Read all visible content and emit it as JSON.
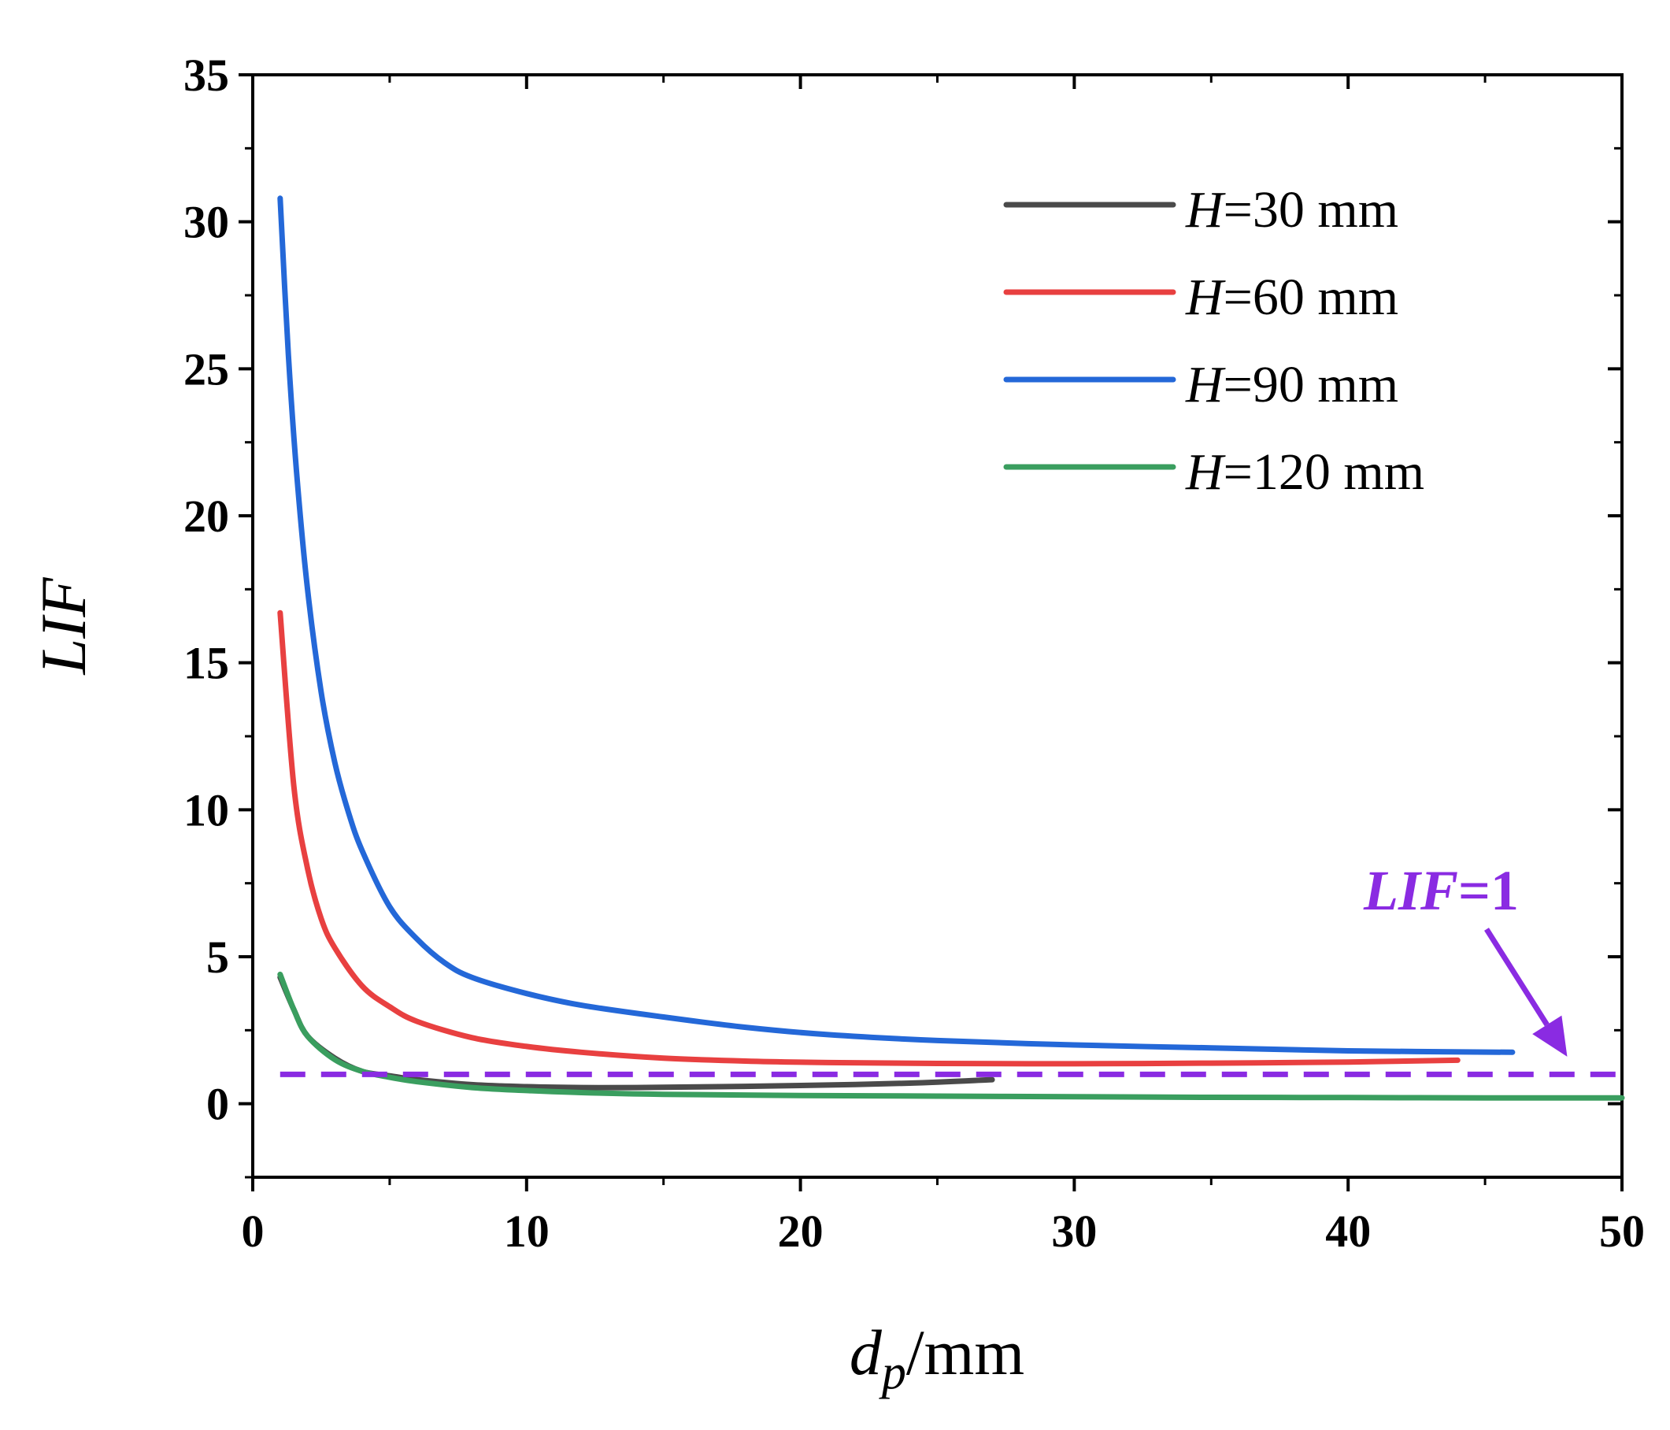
{
  "chart_data": {
    "type": "line",
    "title": "",
    "xlabel": {
      "main": "d",
      "sub": "p",
      "suffix": "/mm"
    },
    "ylabel": "LIF",
    "xlim": [
      0,
      50
    ],
    "ylim": [
      -2.5,
      35
    ],
    "xticks": [
      0,
      10,
      20,
      30,
      40,
      50
    ],
    "yticks": [
      0,
      5,
      10,
      15,
      20,
      25,
      30,
      35
    ],
    "xtick_labels": [
      "0",
      "10",
      "20",
      "30",
      "40",
      "50"
    ],
    "ytick_labels": [
      "0",
      "5",
      "10",
      "15",
      "20",
      "25",
      "30",
      "35"
    ],
    "grid": false,
    "legend_position": "top-right",
    "series": [
      {
        "name": "H=30 mm",
        "name_italic": "H",
        "name_rest": "=30 mm",
        "color": "#4a4a4a",
        "x": [
          1,
          1.5,
          2,
          3,
          4,
          5,
          6,
          8,
          10,
          12,
          14,
          17,
          20,
          24,
          27
        ],
        "y": [
          4.3,
          3.2,
          2.3,
          1.55,
          1.1,
          0.95,
          0.82,
          0.65,
          0.58,
          0.55,
          0.55,
          0.58,
          0.62,
          0.7,
          0.82
        ]
      },
      {
        "name": "H=60 mm",
        "name_italic": "H",
        "name_rest": "=60 mm",
        "color": "#e84040",
        "x": [
          1,
          1.5,
          2,
          2.5,
          3,
          4,
          5,
          6,
          8,
          10,
          12,
          15,
          18,
          21,
          25,
          30,
          35,
          40,
          44
        ],
        "y": [
          16.7,
          10.8,
          8.0,
          6.3,
          5.3,
          4.0,
          3.3,
          2.8,
          2.25,
          1.95,
          1.75,
          1.55,
          1.45,
          1.4,
          1.37,
          1.36,
          1.38,
          1.42,
          1.48
        ]
      },
      {
        "name": "H=90 mm",
        "name_italic": "H",
        "name_rest": "=90 mm",
        "color": "#2468d8",
        "x": [
          1,
          1.3,
          1.6,
          2,
          2.5,
          3,
          3.5,
          4,
          5,
          6,
          7,
          8,
          10,
          12,
          15,
          18,
          21,
          25,
          30,
          35,
          40,
          46
        ],
        "y": [
          30.8,
          25.5,
          21.5,
          17.5,
          14.0,
          11.6,
          9.9,
          8.6,
          6.7,
          5.6,
          4.8,
          4.3,
          3.75,
          3.35,
          2.95,
          2.6,
          2.35,
          2.15,
          2.0,
          1.9,
          1.8,
          1.75
        ]
      },
      {
        "name": "H=120 mm",
        "name_italic": "H",
        "name_rest": "=120 mm",
        "color": "#3a9e5f",
        "x": [
          1,
          1.5,
          2,
          3,
          4,
          5,
          6,
          8,
          10,
          12,
          15,
          20,
          25,
          30,
          35,
          40,
          45,
          50
        ],
        "y": [
          4.4,
          3.2,
          2.3,
          1.5,
          1.1,
          0.9,
          0.75,
          0.55,
          0.45,
          0.38,
          0.32,
          0.28,
          0.26,
          0.24,
          0.22,
          0.21,
          0.2,
          0.2
        ]
      }
    ],
    "reference_line": {
      "y": 1,
      "x_range": [
        1,
        50
      ],
      "color": "#8a2be2",
      "style": "dashed"
    },
    "annotations": [
      {
        "text_italic": "LIF",
        "text_rest": "=1",
        "color": "#8a2be2",
        "points_to": [
          48,
          1.6
        ]
      }
    ]
  }
}
